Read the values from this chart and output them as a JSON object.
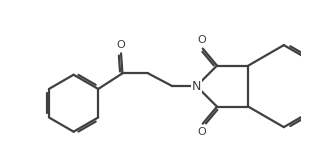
{
  "bg_color": "#ffffff",
  "line_color": "#404040",
  "line_width": 1.6,
  "figsize": [
    3.18,
    1.58
  ],
  "dpi": 100,
  "xlim": [
    0.0,
    10.0
  ],
  "ylim": [
    0.0,
    5.5
  ]
}
